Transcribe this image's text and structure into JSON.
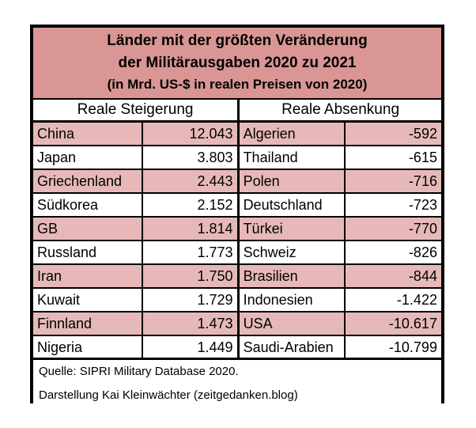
{
  "title": {
    "line1": "Länder mit der größten Veränderung",
    "line2": "der Militärausgaben 2020 zu 2021",
    "line3": "(in Mrd. US-$ in realen Preisen von 2020)"
  },
  "columns": {
    "increase": "Reale Steigerung",
    "decrease": "Reale Absenkung"
  },
  "rows": [
    {
      "country_inc": "China",
      "value_inc": "12.043",
      "country_dec": "Algerien",
      "value_dec": "-592"
    },
    {
      "country_inc": "Japan",
      "value_inc": "3.803",
      "country_dec": "Thailand",
      "value_dec": "-615"
    },
    {
      "country_inc": "Griechenland",
      "value_inc": "2.443",
      "country_dec": "Polen",
      "value_dec": "-716"
    },
    {
      "country_inc": "Südkorea",
      "value_inc": "2.152",
      "country_dec": "Deutschland",
      "value_dec": "-723"
    },
    {
      "country_inc": "GB",
      "value_inc": "1.814",
      "country_dec": "Türkei",
      "value_dec": "-770"
    },
    {
      "country_inc": "Russland",
      "value_inc": "1.773",
      "country_dec": "Schweiz",
      "value_dec": "-826"
    },
    {
      "country_inc": "Iran",
      "value_inc": "1.750",
      "country_dec": "Brasilien",
      "value_dec": "-844"
    },
    {
      "country_inc": "Kuwait",
      "value_inc": "1.729",
      "country_dec": "Indonesien",
      "value_dec": "-1.422"
    },
    {
      "country_inc": "Finnland",
      "value_inc": "1.473",
      "country_dec": "USA",
      "value_dec": "-10.617"
    },
    {
      "country_inc": "Nigeria",
      "value_inc": "1.449",
      "country_dec": "Saudi-Arabien",
      "value_dec": "-10.799"
    }
  ],
  "footer": {
    "source": "Quelle: SIPRI Military Database 2020.",
    "credit": "Darstellung Kai Kleinwächter (zeitgedanken.blog)"
  },
  "colors": {
    "title_background": "#d99694",
    "row_highlight": "#e6b9b8",
    "border": "#000000"
  }
}
